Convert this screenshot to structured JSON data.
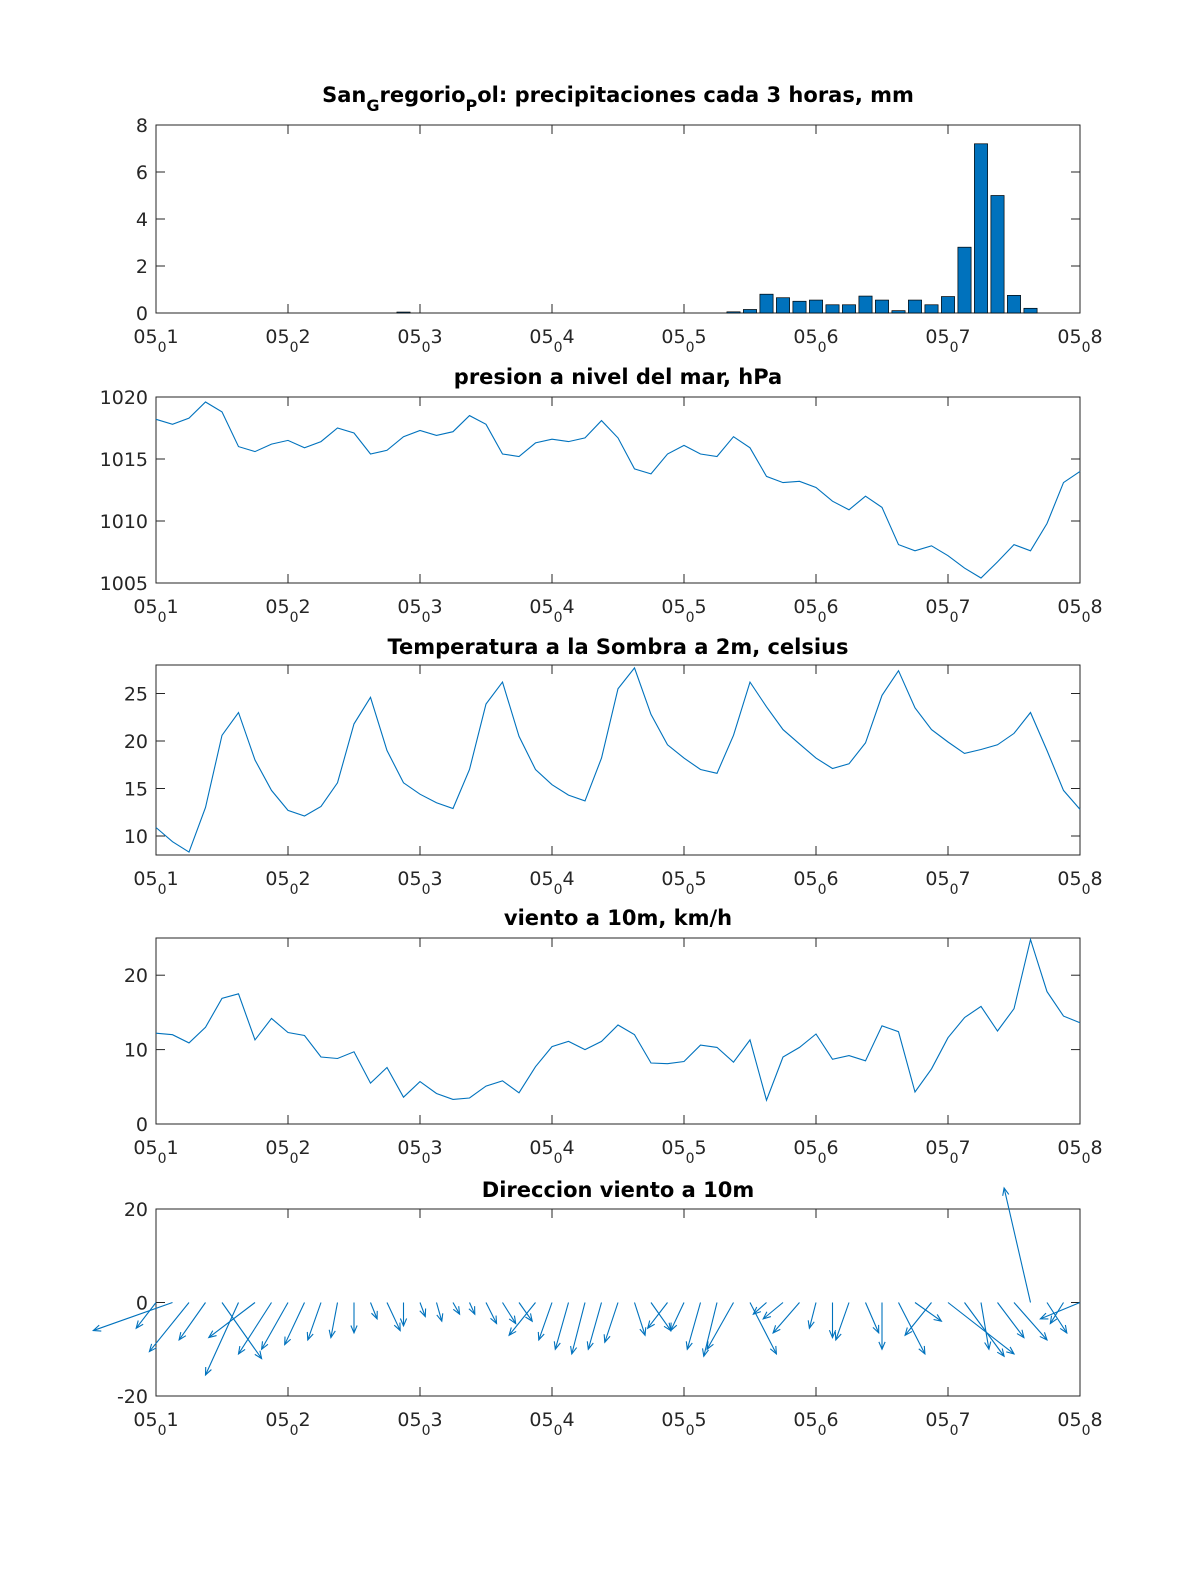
{
  "chart_data": [
    {
      "type": "bar",
      "title": "San_Gregorio_Pol: precipitaciones cada 3 horas, mm",
      "title_main": "San",
      "title_sub1": "G",
      "title_mid": "regorio",
      "title_sub2": "P",
      "title_end": "ol: precipitaciones cada 3 horas, mm",
      "x_unit": "day",
      "x": [
        1.5,
        1.625,
        1.75,
        1.875,
        2.0,
        2.125,
        2.25,
        2.375,
        2.5,
        2.625,
        2.75,
        2.875,
        3.0,
        3.125,
        3.25,
        3.375,
        3.5,
        3.625,
        3.75,
        3.875,
        4.0,
        4.125,
        4.25,
        4.375,
        4.5,
        4.625,
        4.75,
        4.875,
        5.0,
        5.125,
        5.25,
        5.375,
        5.5,
        5.625,
        5.75,
        5.875,
        6.0,
        6.125,
        6.25,
        6.375,
        6.5,
        6.625,
        6.75,
        6.875,
        7.0,
        7.125,
        7.25,
        7.375,
        7.5,
        7.625
      ],
      "values": [
        0,
        0,
        0,
        0,
        0,
        0,
        0,
        0,
        0,
        0,
        0,
        0.04,
        0,
        0,
        0,
        0,
        0,
        0,
        0,
        0,
        0,
        0,
        0,
        0,
        0,
        0,
        0,
        0,
        0,
        0,
        0,
        0.05,
        0.15,
        0.8,
        0.65,
        0.5,
        0.55,
        0.35,
        0.35,
        0.72,
        0.55,
        0.1,
        0.55,
        0.35,
        0.7,
        2.8,
        7.2,
        5.0,
        0.75,
        0.2
      ],
      "color": "#0072bd",
      "ylim": [
        0,
        8
      ],
      "yticks": [
        "0",
        "2",
        "4",
        "6",
        "8"
      ],
      "xlim": [
        1,
        8
      ]
    },
    {
      "type": "line",
      "title": "presion a nivel del mar, hPa",
      "x_start": 1,
      "x_step": 0.125,
      "values": [
        1018.2,
        1017.8,
        1018.3,
        1019.6,
        1018.8,
        1016.0,
        1015.6,
        1016.2,
        1016.5,
        1015.9,
        1016.4,
        1017.5,
        1017.1,
        1015.4,
        1015.7,
        1016.8,
        1017.3,
        1016.9,
        1017.2,
        1018.5,
        1017.8,
        1015.4,
        1015.2,
        1016.3,
        1016.6,
        1016.4,
        1016.7,
        1018.1,
        1016.7,
        1014.2,
        1013.8,
        1015.4,
        1016.1,
        1015.4,
        1015.2,
        1016.8,
        1015.9,
        1013.6,
        1013.1,
        1013.2,
        1012.7,
        1011.6,
        1010.9,
        1012.0,
        1011.1,
        1008.1,
        1007.6,
        1008.0,
        1007.2,
        1006.2,
        1005.4,
        1006.7,
        1008.1,
        1007.6,
        1009.8,
        1013.1,
        1014.0
      ],
      "color": "#0072bd",
      "ylim": [
        1005,
        1020
      ],
      "yticks": [
        "1005",
        "1010",
        "1015",
        "1020"
      ],
      "xlim": [
        1,
        8
      ]
    },
    {
      "type": "line",
      "title": "Temperatura a la Sombra a 2m, celsius",
      "x_start": 1,
      "x_step": 0.125,
      "values": [
        10.9,
        9.4,
        8.3,
        13.0,
        20.6,
        23.0,
        18.0,
        14.8,
        12.7,
        12.1,
        13.1,
        15.6,
        21.8,
        24.6,
        19.0,
        15.6,
        14.4,
        13.5,
        12.9,
        17.0,
        23.9,
        26.2,
        20.5,
        17.0,
        15.4,
        14.3,
        13.7,
        18.2,
        25.5,
        27.7,
        22.8,
        19.6,
        18.2,
        17.0,
        16.6,
        20.6,
        26.2,
        23.6,
        21.2,
        19.7,
        18.2,
        17.1,
        17.6,
        19.8,
        24.8,
        27.4,
        23.5,
        21.2,
        19.9,
        18.7,
        19.1,
        19.6,
        20.8,
        23.0,
        19.0,
        14.8,
        12.8
      ],
      "color": "#0072bd",
      "ylim": [
        8,
        28
      ],
      "yticks": [
        "10",
        "15",
        "20",
        "25"
      ],
      "xlim": [
        1,
        8
      ]
    },
    {
      "type": "line",
      "title": "viento a 10m, km/h",
      "x_start": 1,
      "x_step": 0.125,
      "values": [
        12.2,
        12.0,
        10.9,
        13.0,
        16.9,
        17.5,
        11.3,
        14.2,
        12.3,
        11.9,
        9.0,
        8.8,
        9.7,
        5.5,
        7.6,
        3.6,
        5.7,
        4.1,
        3.3,
        3.5,
        5.1,
        5.8,
        4.2,
        7.7,
        10.4,
        11.1,
        10.0,
        11.1,
        13.3,
        12.0,
        8.2,
        8.1,
        8.4,
        10.6,
        10.3,
        8.3,
        11.3,
        3.2,
        9.0,
        10.3,
        12.1,
        8.7,
        9.2,
        8.5,
        13.2,
        12.4,
        4.3,
        7.4,
        11.6,
        14.3,
        15.8,
        12.5,
        15.5,
        24.8,
        17.8,
        14.5,
        13.6
      ],
      "color": "#0072bd",
      "ylim": [
        0,
        25
      ],
      "yticks": [
        "0",
        "10",
        "20"
      ],
      "xlim": [
        1,
        8
      ]
    },
    {
      "type": "quiver",
      "title": "Direccion viento a 10m",
      "x_start": 1,
      "x_step": 0.125,
      "u": [
        -0.15,
        -0.6,
        -0.3,
        -0.2,
        0.3,
        -0.25,
        -0.35,
        -0.25,
        -0.2,
        -0.15,
        -0.1,
        -0.05,
        0.0,
        0.05,
        0.1,
        0.0,
        0.04,
        0.04,
        0.05,
        0.04,
        0.08,
        0.1,
        0.1,
        -0.2,
        -0.1,
        -0.1,
        -0.1,
        -0.1,
        -0.1,
        0.08,
        0.15,
        -0.15,
        -0.1,
        -0.1,
        -0.1,
        -0.2,
        0.2,
        -0.1,
        -0.15,
        -0.2,
        -0.05,
        0.0,
        -0.1,
        0.1,
        0.0,
        0.2,
        0.2,
        -0.2,
        0.5,
        0.3,
        0.06,
        0.2,
        0.25,
        -0.2,
        0.15,
        -0.1,
        -0.3
      ],
      "v": [
        -5.5,
        -6.0,
        -10.5,
        -8.0,
        -12.0,
        -15.5,
        -7.5,
        -11.0,
        -10.0,
        -9.0,
        -8.0,
        -7.5,
        -6.5,
        -3.5,
        -6.0,
        -5.0,
        -3.0,
        -4.0,
        -2.5,
        -2.5,
        -4.5,
        -4.5,
        -4.0,
        -7.0,
        -8.0,
        -10.0,
        -11.0,
        -10.0,
        -8.5,
        -7.0,
        -6.0,
        -5.5,
        -6.0,
        -10.0,
        -11.5,
        -10.0,
        -11.0,
        -2.5,
        -3.5,
        -6.5,
        -5.5,
        -7.5,
        -8.0,
        -6.5,
        -10.0,
        -11.0,
        -4.0,
        -7.0,
        -11.0,
        -11.5,
        -10.0,
        -7.5,
        -8.0,
        24.5,
        -6.5,
        -4.5,
        -3.5
      ],
      "color": "#0072bd",
      "ylim": [
        -20,
        20
      ],
      "yticks": [
        "-20",
        "0",
        "20"
      ],
      "xlim": [
        1,
        8
      ]
    }
  ],
  "x_tick_labels": [
    {
      "main": "05",
      "sub": "0",
      "end": "1"
    },
    {
      "main": "05",
      "sub": "0",
      "end": "2"
    },
    {
      "main": "05",
      "sub": "0",
      "end": "3"
    },
    {
      "main": "05",
      "sub": "0",
      "end": "4"
    },
    {
      "main": "05",
      "sub": "0",
      "end": "5"
    },
    {
      "main": "05",
      "sub": "0",
      "end": "6"
    },
    {
      "main": "05",
      "sub": "0",
      "end": "7"
    },
    {
      "main": "05",
      "sub": "0",
      "end": "8"
    }
  ]
}
